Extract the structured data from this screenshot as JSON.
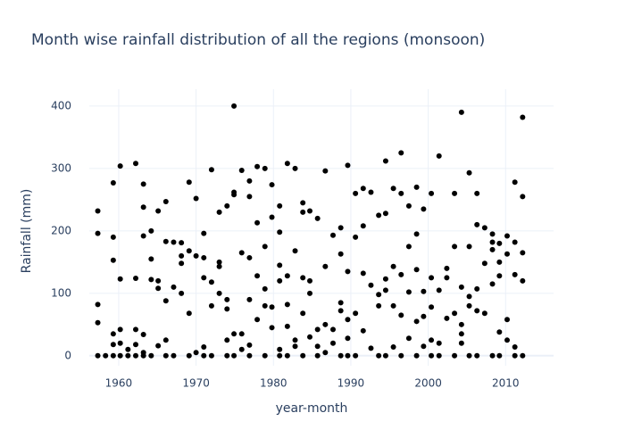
{
  "chart_data": {
    "type": "scatter",
    "title": "Month wise rainfall distribution of all the regions (monsoon)",
    "x_label": "year-month",
    "y_label": "Rainfall (mm)",
    "xlim": [
      1956.2,
      2016.2
    ],
    "ylim": [
      -16,
      427
    ],
    "xticks": [
      1960,
      1970,
      1980,
      1990,
      2000,
      2010
    ],
    "yticks": [
      0,
      100,
      200,
      300,
      400
    ],
    "grid": true,
    "color": "#000000",
    "x": [
      1957.3,
      1957.3,
      1957.3,
      1957.3,
      1957.3,
      1958.3,
      1959.3,
      1959.3,
      1959.3,
      1959.3,
      1959.3,
      1959.3,
      1960.2,
      1960.2,
      1960.2,
      1960.2,
      1960.2,
      1961.2,
      1961.2,
      1962.2,
      1962.2,
      1962.2,
      1962.2,
      1962.2,
      1963.2,
      1963.2,
      1963.2,
      1963.2,
      1963.2,
      1963.2,
      1964.2,
      1964.2,
      1964.2,
      1964.2,
      1965.1,
      1965.1,
      1965.1,
      1965.1,
      1966.1,
      1966.1,
      1966.1,
      1966.1,
      1966.1,
      1967.1,
      1967.1,
      1967.1,
      1968.1,
      1968.1,
      1968.1,
      1968.1,
      1969.1,
      1969.1,
      1969.1,
      1969.1,
      1970.0,
      1970.0,
      1970.0,
      1971.0,
      1971.0,
      1971.0,
      1971.0,
      1971.0,
      1972.0,
      1972.0,
      1972.0,
      1972.0,
      1973.0,
      1973.0,
      1973.0,
      1973.0,
      1974.0,
      1974.0,
      1974.0,
      1974.0,
      1974.0,
      1974.9,
      1974.9,
      1974.9,
      1974.9,
      1974.9,
      1975.9,
      1975.9,
      1975.9,
      1975.9,
      1976.9,
      1976.9,
      1976.9,
      1976.9,
      1976.9,
      1976.9,
      1977.9,
      1977.9,
      1977.9,
      1977.9,
      1978.9,
      1978.9,
      1978.9,
      1978.9,
      1978.9,
      1979.8,
      1979.8,
      1979.8,
      1979.8,
      1980.8,
      1980.8,
      1980.8,
      1980.8,
      1980.8,
      1980.8,
      1981.8,
      1981.8,
      1981.8,
      1981.8,
      1981.8,
      1982.8,
      1982.8,
      1982.8,
      1982.8,
      1983.8,
      1983.8,
      1983.8,
      1983.8,
      1983.8,
      1984.7,
      1984.7,
      1984.7,
      1984.7,
      1985.7,
      1985.7,
      1985.7,
      1985.7,
      1986.7,
      1986.7,
      1986.7,
      1986.7,
      1987.7,
      1987.7,
      1987.7,
      1988.7,
      1988.7,
      1988.7,
      1988.7,
      1988.7,
      1989.6,
      1989.6,
      1989.6,
      1989.6,
      1989.6,
      1990.6,
      1990.6,
      1990.6,
      1990.6,
      1991.6,
      1991.6,
      1991.6,
      1991.6,
      1992.6,
      1992.6,
      1992.6,
      1993.6,
      1993.6,
      1993.6,
      1993.6,
      1994.5,
      1994.5,
      1994.5,
      1994.5,
      1994.5,
      1995.5,
      1995.5,
      1995.5,
      1995.5,
      1996.5,
      1996.5,
      1996.5,
      1996.5,
      1996.5,
      1997.5,
      1997.5,
      1997.5,
      1997.5,
      1998.5,
      1998.5,
      1998.5,
      1998.5,
      1998.5,
      1999.4,
      1999.4,
      1999.4,
      1999.4,
      2000.4,
      2000.4,
      2000.4,
      2000.4,
      2000.4,
      2001.4,
      2001.4,
      2001.4,
      2001.4,
      2002.4,
      2002.4,
      2002.4,
      2003.4,
      2003.4,
      2003.4,
      2003.4,
      2004.3,
      2004.3,
      2004.3,
      2004.3,
      2004.3,
      2005.3,
      2005.3,
      2005.3,
      2005.3,
      2005.3,
      2006.3,
      2006.3,
      2006.3,
      2006.3,
      2006.3,
      2007.3,
      2007.3,
      2007.3,
      2008.3,
      2008.3,
      2008.3,
      2008.3,
      2008.3,
      2009.2,
      2009.2,
      2009.2,
      2009.2,
      2009.2,
      2010.2,
      2010.2,
      2010.2,
      2010.2,
      2011.2,
      2011.2,
      2011.2,
      2011.2,
      2011.2,
      2012.2,
      2012.2,
      2012.2,
      2012.2,
      2012.2
    ],
    "values": [
      0,
      53,
      232,
      196,
      82,
      0,
      35,
      277,
      190,
      153,
      0,
      18,
      0,
      42,
      20,
      123,
      304,
      10,
      0,
      42,
      308,
      124,
      18,
      0,
      0,
      275,
      238,
      192,
      34,
      5,
      155,
      200,
      122,
      0,
      232,
      120,
      108,
      16,
      247,
      183,
      88,
      25,
      0,
      182,
      110,
      0,
      181,
      148,
      100,
      160,
      278,
      168,
      68,
      0,
      252,
      160,
      5,
      196,
      157,
      125,
      14,
      0,
      298,
      118,
      80,
      0,
      230,
      150,
      143,
      100,
      240,
      90,
      75,
      25,
      0,
      258,
      262,
      35,
      400,
      0,
      297,
      165,
      35,
      10,
      280,
      255,
      157,
      90,
      17,
      0,
      303,
      213,
      128,
      58,
      300,
      175,
      107,
      80,
      0,
      274,
      222,
      78,
      45,
      240,
      198,
      145,
      120,
      10,
      0,
      308,
      128,
      82,
      47,
      0,
      300,
      168,
      25,
      15,
      245,
      230,
      125,
      68,
      0,
      232,
      120,
      100,
      30,
      220,
      42,
      15,
      0,
      296,
      143,
      50,
      5,
      193,
      42,
      20,
      205,
      163,
      85,
      72,
      0,
      305,
      135,
      58,
      28,
      0,
      260,
      190,
      68,
      0,
      268,
      208,
      132,
      40,
      262,
      113,
      12,
      225,
      98,
      80,
      0,
      312,
      228,
      123,
      105,
      0,
      268,
      143,
      80,
      14,
      325,
      260,
      130,
      65,
      0,
      240,
      175,
      102,
      28,
      270,
      195,
      138,
      55,
      0,
      235,
      103,
      63,
      15,
      260,
      125,
      78,
      25,
      0,
      320,
      105,
      20,
      0,
      140,
      125,
      60,
      260,
      175,
      68,
      0,
      390,
      110,
      50,
      35,
      20,
      293,
      175,
      95,
      80,
      0,
      260,
      210,
      107,
      72,
      0,
      205,
      148,
      68,
      195,
      182,
      170,
      115,
      0,
      180,
      150,
      128,
      38,
      0,
      192,
      163,
      58,
      25,
      278,
      182,
      130,
      14,
      0,
      255,
      165,
      120,
      382,
      0
    ]
  }
}
